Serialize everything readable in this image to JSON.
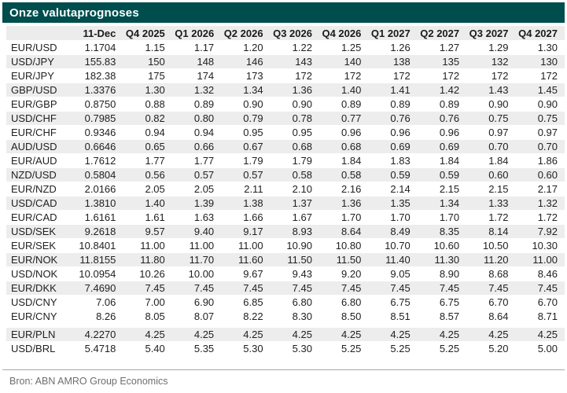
{
  "title": "Onze valutaprognoses",
  "source": "Bron: ABN AMRO Group Economics",
  "colors": {
    "title_bar_bg": "#004D4D",
    "title_text": "#FFFFFF",
    "header_row_bg": "#ECECEC",
    "stripe_bg": "#EDEDED",
    "body_text": "#212121",
    "source_text": "#6E6E6E",
    "divider": "#A9A9A9"
  },
  "chart_data": {
    "type": "table",
    "title": "Onze valutaprognoses",
    "source": "Bron: ABN AMRO Group Economics",
    "first_column_header": "",
    "columns": [
      "11-Dec",
      "Q4 2025",
      "Q1 2026",
      "Q2 2026",
      "Q3 2026",
      "Q4 2026",
      "Q1 2027",
      "Q2 2027",
      "Q3 2027",
      "Q4 2027"
    ],
    "rows": [
      {
        "pair": "EUR/USD",
        "values": [
          "1.1704",
          "1.15",
          "1.17",
          "1.20",
          "1.22",
          "1.25",
          "1.26",
          "1.27",
          "1.29",
          "1.30"
        ]
      },
      {
        "pair": "USD/JPY",
        "values": [
          "155.83",
          "150",
          "148",
          "146",
          "143",
          "140",
          "138",
          "135",
          "132",
          "130"
        ]
      },
      {
        "pair": "EUR/JPY",
        "values": [
          "182.38",
          "175",
          "174",
          "173",
          "172",
          "172",
          "172",
          "172",
          "172",
          "172"
        ]
      },
      {
        "pair": "GBP/USD",
        "values": [
          "1.3376",
          "1.30",
          "1.32",
          "1.34",
          "1.36",
          "1.40",
          "1.41",
          "1.42",
          "1.43",
          "1.45"
        ]
      },
      {
        "pair": "EUR/GBP",
        "values": [
          "0.8750",
          "0.88",
          "0.89",
          "0.90",
          "0.90",
          "0.89",
          "0.89",
          "0.89",
          "0.90",
          "0.90"
        ]
      },
      {
        "pair": "USD/CHF",
        "values": [
          "0.7985",
          "0.82",
          "0.80",
          "0.79",
          "0.78",
          "0.77",
          "0.76",
          "0.76",
          "0.75",
          "0.75"
        ]
      },
      {
        "pair": "EUR/CHF",
        "values": [
          "0.9346",
          "0.94",
          "0.94",
          "0.95",
          "0.95",
          "0.96",
          "0.96",
          "0.96",
          "0.97",
          "0.97"
        ]
      },
      {
        "pair": "AUD/USD",
        "values": [
          "0.6646",
          "0.65",
          "0.66",
          "0.67",
          "0.68",
          "0.68",
          "0.69",
          "0.69",
          "0.70",
          "0.70"
        ]
      },
      {
        "pair": "EUR/AUD",
        "values": [
          "1.7612",
          "1.77",
          "1.77",
          "1.79",
          "1.79",
          "1.84",
          "1.83",
          "1.84",
          "1.84",
          "1.86"
        ]
      },
      {
        "pair": "NZD/USD",
        "values": [
          "0.5804",
          "0.56",
          "0.57",
          "0.57",
          "0.58",
          "0.58",
          "0.59",
          "0.59",
          "0.60",
          "0.60"
        ]
      },
      {
        "pair": "EUR/NZD",
        "values": [
          "2.0166",
          "2.05",
          "2.05",
          "2.11",
          "2.10",
          "2.16",
          "2.14",
          "2.15",
          "2.15",
          "2.17"
        ]
      },
      {
        "pair": "USD/CAD",
        "values": [
          "1.3810",
          "1.40",
          "1.39",
          "1.38",
          "1.37",
          "1.36",
          "1.35",
          "1.34",
          "1.33",
          "1.32"
        ]
      },
      {
        "pair": "EUR/CAD",
        "values": [
          "1.6161",
          "1.61",
          "1.63",
          "1.66",
          "1.67",
          "1.70",
          "1.70",
          "1.70",
          "1.72",
          "1.72"
        ]
      },
      {
        "pair": "USD/SEK",
        "values": [
          "9.2618",
          "9.57",
          "9.40",
          "9.17",
          "8.93",
          "8.64",
          "8.49",
          "8.35",
          "8.14",
          "7.92"
        ]
      },
      {
        "pair": "EUR/SEK",
        "values": [
          "10.8401",
          "11.00",
          "11.00",
          "11.00",
          "10.90",
          "10.80",
          "10.70",
          "10.60",
          "10.50",
          "10.30"
        ]
      },
      {
        "pair": "EUR/NOK",
        "values": [
          "11.8155",
          "11.80",
          "11.70",
          "11.60",
          "11.50",
          "11.50",
          "11.40",
          "11.30",
          "11.20",
          "11.00"
        ]
      },
      {
        "pair": "USD/NOK",
        "values": [
          "10.0954",
          "10.26",
          "10.00",
          "9.67",
          "9.43",
          "9.20",
          "9.05",
          "8.90",
          "8.68",
          "8.46"
        ]
      },
      {
        "pair": "EUR/DKK",
        "values": [
          "7.4690",
          "7.45",
          "7.45",
          "7.45",
          "7.45",
          "7.45",
          "7.45",
          "7.45",
          "7.45",
          "7.45"
        ]
      },
      {
        "pair": "USD/CNY",
        "values": [
          "7.06",
          "7.00",
          "6.90",
          "6.85",
          "6.80",
          "6.80",
          "6.75",
          "6.75",
          "6.70",
          "6.70"
        ]
      },
      {
        "pair": "EUR/CNY",
        "values": [
          "8.26",
          "8.05",
          "8.07",
          "8.22",
          "8.30",
          "8.50",
          "8.51",
          "8.57",
          "8.64",
          "8.71"
        ]
      },
      {
        "pair": "EUR/PLN",
        "values": [
          "4.2270",
          "4.25",
          "4.25",
          "4.25",
          "4.25",
          "4.25",
          "4.25",
          "4.25",
          "4.25",
          "4.25"
        ]
      },
      {
        "pair": "USD/BRL",
        "values": [
          "5.4718",
          "5.40",
          "5.35",
          "5.30",
          "5.30",
          "5.25",
          "5.25",
          "5.25",
          "5.20",
          "5.00"
        ]
      }
    ],
    "layout": {
      "grid": false,
      "striped": true,
      "shaded_row_indices": [
        1,
        3,
        5,
        7,
        9,
        11,
        13,
        15,
        17,
        20
      ],
      "gap_above_row_index": 20
    }
  }
}
